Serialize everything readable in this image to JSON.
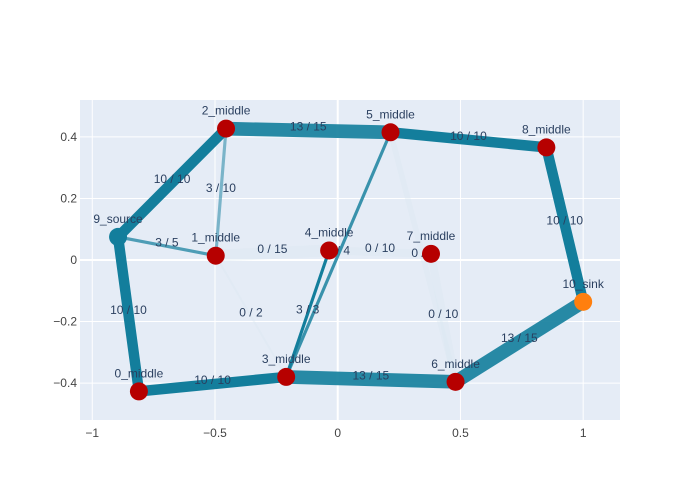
{
  "chart_data": {
    "type": "network",
    "xlim": [
      -1.05,
      1.15
    ],
    "ylim": [
      -0.52,
      0.52
    ],
    "x_ticks": [
      -1,
      -0.5,
      0,
      0.5,
      1
    ],
    "x_tick_labels": [
      "−1",
      "−0.5",
      "0",
      "0.5",
      "1"
    ],
    "y_ticks": [
      -0.4,
      -0.2,
      0,
      0.2,
      0.4
    ],
    "y_tick_labels": [
      "−0.4",
      "−0.2",
      "0",
      "0.2",
      "0.4"
    ],
    "grid": true,
    "nodes": [
      {
        "id": "0",
        "label": "0_middle",
        "x": -0.81,
        "y": -0.427,
        "color": "#b60000"
      },
      {
        "id": "1",
        "label": "1_middle",
        "x": -0.497,
        "y": 0.014,
        "color": "#b60000"
      },
      {
        "id": "2",
        "label": "2_middle",
        "x": -0.455,
        "y": 0.427,
        "color": "#b60000"
      },
      {
        "id": "3",
        "label": "3_middle",
        "x": -0.21,
        "y": -0.38,
        "color": "#b60000"
      },
      {
        "id": "4",
        "label": "4_middle",
        "x": -0.035,
        "y": 0.031,
        "color": "#b60000"
      },
      {
        "id": "5",
        "label": "5_middle",
        "x": 0.215,
        "y": 0.415,
        "color": "#b60000"
      },
      {
        "id": "6",
        "label": "6_middle",
        "x": 0.48,
        "y": -0.396,
        "color": "#b60000"
      },
      {
        "id": "7",
        "label": "7_middle",
        "x": 0.38,
        "y": 0.02,
        "color": "#b60000"
      },
      {
        "id": "8",
        "label": "8_middle",
        "x": 0.85,
        "y": 0.366,
        "color": "#b60000"
      },
      {
        "id": "9",
        "label": "9_source",
        "x": -0.895,
        "y": 0.075,
        "color": "#137e9c"
      },
      {
        "id": "10",
        "label": "10_sink",
        "x": 1.0,
        "y": -0.136,
        "color": "#ff7f0e"
      }
    ],
    "edges": [
      {
        "from": "9",
        "to": "2",
        "flow": 10,
        "capacity": 10,
        "label": "10 / 10"
      },
      {
        "from": "9",
        "to": "1",
        "flow": 3,
        "capacity": 5,
        "label": "3 / 5"
      },
      {
        "from": "9",
        "to": "0",
        "flow": 10,
        "capacity": 10,
        "label": "10 / 10"
      },
      {
        "from": "2",
        "to": "5",
        "flow": 13,
        "capacity": 15,
        "label": "13 / 15"
      },
      {
        "from": "2",
        "to": "1",
        "flow": 3,
        "capacity": 10,
        "label": "3 / 10"
      },
      {
        "from": "1",
        "to": "4",
        "flow": 0,
        "capacity": 15,
        "label": "0 / 15"
      },
      {
        "from": "1",
        "to": "3",
        "flow": 0,
        "capacity": 2,
        "label": "0 / 2"
      },
      {
        "from": "4",
        "to": "7",
        "flow": 0,
        "capacity": 10,
        "label": "0 / 10"
      },
      {
        "from": "5",
        "to": "8",
        "flow": 10,
        "capacity": 10,
        "label": "10 / 10"
      },
      {
        "from": "5",
        "to": "3",
        "flow": 3,
        "capacity": 4,
        "label": "3 / 4"
      },
      {
        "from": "4",
        "to": "3",
        "flow": 3,
        "capacity": 3,
        "label": "3 / 3"
      },
      {
        "from": "5",
        "to": "6",
        "flow": 0,
        "capacity": 7,
        "label": "0 / 7"
      },
      {
        "from": "7",
        "to": "6",
        "flow": 0,
        "capacity": 10,
        "label": "0 / 10"
      },
      {
        "from": "8",
        "to": "10",
        "flow": 10,
        "capacity": 10,
        "label": "10 / 10"
      },
      {
        "from": "0",
        "to": "3",
        "flow": 10,
        "capacity": 10,
        "label": "10 / 10"
      },
      {
        "from": "3",
        "to": "6",
        "flow": 13,
        "capacity": 15,
        "label": "13 / 15"
      },
      {
        "from": "6",
        "to": "10",
        "flow": 13,
        "capacity": 15,
        "label": "13 / 15"
      }
    ]
  }
}
